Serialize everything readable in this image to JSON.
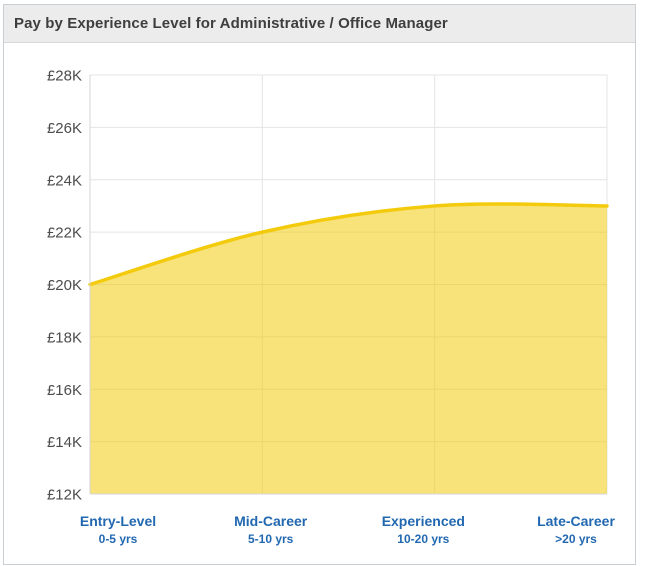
{
  "header": {
    "title": "Pay by Experience Level for Administrative / Office Manager"
  },
  "chart_data": {
    "type": "area",
    "title": "Pay by Experience Level for Administrative / Office Manager",
    "categories": [
      "Entry-Level",
      "Mid-Career",
      "Experienced",
      "Late-Career"
    ],
    "category_sublabels": [
      "0-5 yrs",
      "5-10 yrs",
      "10-20 yrs",
      ">20 yrs"
    ],
    "values": [
      20000,
      22000,
      23000,
      23000
    ],
    "currency": "£",
    "xlabel": "",
    "ylabel": "",
    "ylim": [
      12000,
      28000
    ],
    "ytick_step": 2000,
    "ytick_labels": [
      "£12K",
      "£14K",
      "£16K",
      "£18K",
      "£20K",
      "£22K",
      "£24K",
      "£26K",
      "£28K"
    ],
    "grid": true,
    "legend": false,
    "curve": "spline",
    "colors": {
      "line": "#f3cb0c",
      "area_fill": "rgba(243,203,12,0.55)",
      "gridline": "#e4e4e4",
      "axis_line": "#d6d6d6",
      "ytick_label": "#4c4c4c",
      "xtick_label": "#2268b1",
      "header_bg": "#ececec",
      "header_text": "#3e3e3e",
      "panel_border": "#c9ced3"
    }
  }
}
